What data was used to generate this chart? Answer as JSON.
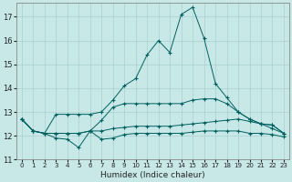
{
  "xlabel": "Humidex (Indice chaleur)",
  "background_color": "#c8e8e8",
  "grid_color": "#a8d0d0",
  "line_color": "#006060",
  "xlim": [
    -0.5,
    23.5
  ],
  "ylim": [
    11.0,
    17.6
  ],
  "yticks": [
    11,
    12,
    13,
    14,
    15,
    16,
    17
  ],
  "xticks": [
    0,
    1,
    2,
    3,
    4,
    5,
    6,
    7,
    8,
    9,
    10,
    11,
    12,
    13,
    14,
    15,
    16,
    17,
    18,
    19,
    20,
    21,
    22,
    23
  ],
  "series_volatile": [
    12.7,
    12.2,
    12.1,
    11.9,
    11.85,
    11.5,
    12.2,
    11.85,
    11.9,
    12.05,
    12.1,
    12.1,
    12.1,
    12.1,
    12.1,
    12.15,
    12.2,
    12.2,
    12.2,
    12.2,
    12.1,
    12.1,
    12.05,
    11.95
  ],
  "series_peak": [
    12.7,
    12.2,
    12.1,
    12.9,
    12.9,
    12.9,
    12.9,
    13.0,
    13.5,
    14.1,
    14.4,
    15.4,
    16.0,
    15.5,
    17.1,
    17.4,
    16.1,
    14.2,
    13.6,
    13.0,
    12.7,
    12.5,
    12.45,
    12.1
  ],
  "series_flat": [
    12.7,
    12.2,
    12.1,
    12.1,
    12.1,
    12.1,
    12.2,
    12.2,
    12.3,
    12.35,
    12.4,
    12.4,
    12.4,
    12.4,
    12.45,
    12.5,
    12.55,
    12.6,
    12.65,
    12.7,
    12.6,
    12.5,
    12.3,
    12.1
  ],
  "series_mid": [
    12.7,
    12.2,
    12.1,
    12.1,
    12.1,
    12.1,
    12.2,
    12.65,
    13.2,
    13.35,
    13.35,
    13.35,
    13.35,
    13.35,
    13.35,
    13.5,
    13.55,
    13.55,
    13.35,
    13.0,
    12.7,
    12.5,
    12.45,
    12.1
  ]
}
